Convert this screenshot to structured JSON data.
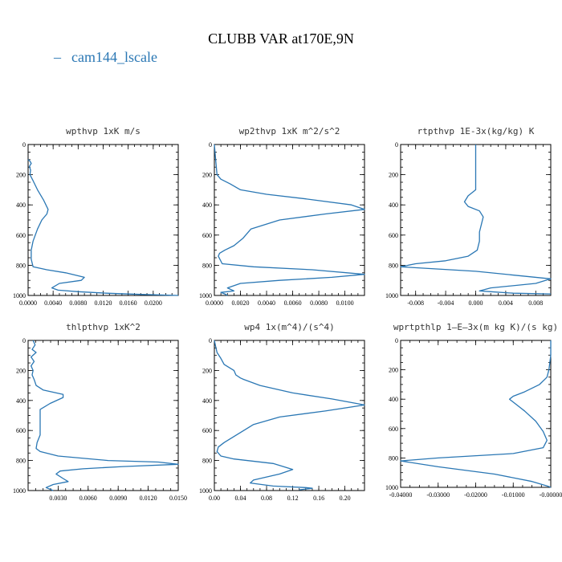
{
  "figure": {
    "title": "CLUBB VAR at170E,9N",
    "legend": [
      {
        "label": "cam144_lscale",
        "marker": "–",
        "color": "#2a77b4"
      }
    ]
  },
  "colors": {
    "series": "#2a77b4",
    "axis": "#000000",
    "panel_title": "#333333"
  },
  "chart_data": [
    {
      "type": "line",
      "title": "wpthvp  1xK m/s",
      "xlabel": "",
      "ylabel": "",
      "xlim": [
        0,
        0.024
      ],
      "xticks": [
        "0.0000",
        "0.0040",
        "0.0080",
        "0.0120",
        "0.0160",
        "0.0200"
      ],
      "xtick_values": [
        0,
        0.004,
        0.008,
        0.012,
        0.016,
        0.02
      ],
      "ylim": [
        1000,
        0
      ],
      "yticks": [
        "0",
        "200",
        "400",
        "600",
        "800",
        "1000"
      ],
      "ytick_values": [
        0,
        200,
        400,
        600,
        800,
        1000
      ],
      "series": [
        {
          "name": "cam144_lscale",
          "x": [
            0,
            0.0003,
            0.0005,
            0.0002,
            0.0004,
            0.0003,
            0.0008,
            0.0015,
            0.0025,
            0.0032,
            0.003,
            0.0022,
            0.0015,
            0.0008,
            0.0005,
            0.0005,
            0.0008,
            0.003,
            0.006,
            0.009,
            0.0085,
            0.005,
            0.0038,
            0.0048,
            0.008,
            0.0125,
            0.018,
            0.024
          ],
          "y": [
            100,
            110,
            125,
            145,
            170,
            200,
            240,
            300,
            370,
            430,
            460,
            500,
            560,
            640,
            700,
            760,
            810,
            830,
            850,
            880,
            900,
            920,
            950,
            965,
            975,
            985,
            993,
            1000
          ]
        }
      ]
    },
    {
      "type": "line",
      "title": "wp2thvp  1xK m^2/s^2",
      "xlabel": "",
      "ylabel": "",
      "xlim": [
        0,
        0.0115
      ],
      "xticks": [
        "0.0000",
        "0.0020",
        "0.0040",
        "0.0060",
        "0.0080",
        "0.0100"
      ],
      "xtick_values": [
        0,
        0.002,
        0.004,
        0.006,
        0.008,
        0.01
      ],
      "ylim": [
        1000,
        0
      ],
      "yticks": [
        "0",
        "200",
        "400",
        "600",
        "800",
        "1000"
      ],
      "ytick_values": [
        0,
        200,
        400,
        600,
        800,
        1000
      ],
      "series": [
        {
          "name": "cam144_lscale",
          "x": [
            0,
            0.0001,
            0.0002,
            0.0005,
            0.0012,
            0.002,
            0.004,
            0.007,
            0.0105,
            0.0115,
            0.0085,
            0.005,
            0.0028,
            0.0022,
            0.0015,
            0.0008,
            0.0004,
            0.0003,
            0.0006,
            0.003,
            0.0075,
            0.0115,
            0.009,
            0.005,
            0.002,
            0.001,
            0.0015,
            0.0005,
            0.0008,
            0.001
          ],
          "y": [
            0,
            100,
            200,
            230,
            260,
            300,
            330,
            360,
            400,
            430,
            460,
            500,
            560,
            620,
            670,
            700,
            720,
            740,
            790,
            810,
            830,
            860,
            880,
            900,
            920,
            950,
            970,
            980,
            990,
            1000
          ]
        }
      ]
    },
    {
      "type": "line",
      "title": "rtpthvp  1E-3x(kg/kg) K",
      "xlabel": "",
      "ylabel": "",
      "xlim": [
        -0.01,
        0.01
      ],
      "xticks": [
        "-0.008",
        "-0.004",
        "0.000",
        "0.004",
        "0.008"
      ],
      "xtick_values": [
        -0.008,
        -0.004,
        0,
        0.004,
        0.008
      ],
      "ylim": [
        1000,
        0
      ],
      "yticks": [
        "0",
        "200",
        "400",
        "600",
        "800",
        "1000"
      ],
      "ytick_values": [
        0,
        200,
        400,
        600,
        800,
        1000
      ],
      "series": [
        {
          "name": "cam144_lscale",
          "x": [
            0,
            0,
            0,
            0,
            -0.001,
            -0.0015,
            -0.001,
            0.0005,
            0.001,
            0.0008,
            0.0005,
            0.0005,
            0.0002,
            -0.001,
            -0.004,
            -0.008,
            -0.01,
            0.0,
            0.01,
            0.008,
            0.002,
            0.0005,
            0.002,
            0.005,
            0.01
          ],
          "y": [
            0,
            100,
            200,
            300,
            340,
            380,
            410,
            440,
            480,
            520,
            580,
            640,
            700,
            740,
            770,
            790,
            810,
            840,
            890,
            920,
            950,
            970,
            975,
            985,
            990
          ]
        }
      ]
    },
    {
      "type": "line",
      "title": "thlpthvp  1xK^2",
      "xlabel": "",
      "ylabel": "",
      "xlim": [
        0,
        0.015
      ],
      "xticks": [
        "0.0030",
        "0.0060",
        "0.0090",
        "0.0120",
        "0.0150"
      ],
      "xtick_values": [
        0.003,
        0.006,
        0.009,
        0.012,
        0.015
      ],
      "ylim": [
        1000,
        0
      ],
      "yticks": [
        "0",
        "200",
        "400",
        "600",
        "800",
        "1000"
      ],
      "ytick_values": [
        0,
        200,
        400,
        600,
        800,
        1000
      ],
      "series": [
        {
          "name": "cam144_lscale",
          "x": [
            0.0005,
            0.0007,
            0.0004,
            0.0008,
            0.0003,
            0.0006,
            0.0003,
            0.0005,
            0.0004,
            0.0006,
            0.0008,
            0.0015,
            0.0035,
            0.0035,
            0.0022,
            0.0012,
            0.0012,
            0.0012,
            0.0012,
            0.0009,
            0.0008,
            0.0012,
            0.003,
            0.008,
            0.013,
            0.015,
            0.0095,
            0.0055,
            0.0032,
            0.0028,
            0.0035,
            0.004,
            0.0025,
            0.0018,
            0.0025
          ],
          "y": [
            0,
            30,
            60,
            80,
            110,
            140,
            170,
            200,
            230,
            260,
            300,
            330,
            360,
            380,
            420,
            460,
            520,
            580,
            630,
            680,
            720,
            740,
            770,
            800,
            810,
            825,
            840,
            855,
            870,
            890,
            920,
            940,
            960,
            980,
            1000
          ]
        }
      ]
    },
    {
      "type": "line",
      "title": "wp4  1x(m^4)/(s^4)",
      "xlabel": "",
      "ylabel": "",
      "xlim": [
        0,
        0.23
      ],
      "xticks": [
        "0.00",
        "0.04",
        "0.08",
        "0.12",
        "0.16",
        "0.20"
      ],
      "xtick_values": [
        0,
        0.04,
        0.08,
        0.12,
        0.16,
        0.2
      ],
      "ylim": [
        1000,
        0
      ],
      "yticks": [
        "0",
        "200",
        "400",
        "600",
        "800",
        "1000"
      ],
      "ytick_values": [
        0,
        200,
        400,
        600,
        800,
        1000
      ],
      "series": [
        {
          "name": "cam144_lscale",
          "x": [
            0,
            0.002,
            0.004,
            0.01,
            0.015,
            0.03,
            0.033,
            0.04,
            0.045,
            0.07,
            0.12,
            0.18,
            0.23,
            0.17,
            0.1,
            0.06,
            0.045,
            0.03,
            0.015,
            0.006,
            0.004,
            0.01,
            0.03,
            0.09,
            0.12,
            0.1,
            0.06,
            0.055,
            0.09,
            0.14,
            0.15,
            0.13
          ],
          "y": [
            0,
            40,
            80,
            120,
            160,
            200,
            230,
            250,
            260,
            300,
            350,
            390,
            430,
            470,
            510,
            560,
            600,
            640,
            680,
            710,
            740,
            770,
            790,
            820,
            860,
            890,
            930,
            950,
            970,
            980,
            985,
            995
          ]
        }
      ]
    },
    {
      "type": "line",
      "title": "wprtpthlp  1–E–3x(m kg K)/(s kg)",
      "xlabel": "",
      "ylabel": "",
      "xlim": [
        -0.04,
        0
      ],
      "xticks": [
        "-0.04000",
        "-0.03000",
        "-0.02000",
        "-0.01000",
        "-0.00000"
      ],
      "xtick_values": [
        -0.04,
        -0.03,
        -0.02,
        -0.01,
        0
      ],
      "ylim": [
        1000,
        0
      ],
      "yticks": [
        "0",
        "200",
        "400",
        "600",
        "800",
        "1000"
      ],
      "ytick_values": [
        0,
        200,
        400,
        600,
        800,
        1000
      ],
      "series": [
        {
          "name": "cam144_lscale",
          "x": [
            0,
            0,
            -0.0005,
            -0.001,
            -0.003,
            -0.007,
            -0.01,
            -0.011,
            -0.01,
            -0.007,
            -0.004,
            -0.002,
            -0.001,
            -0.002,
            -0.01,
            -0.03,
            -0.04,
            -0.03,
            -0.015,
            -0.005,
            -0.001,
            0
          ],
          "y": [
            0,
            100,
            200,
            250,
            300,
            350,
            380,
            400,
            420,
            480,
            550,
            620,
            680,
            730,
            770,
            800,
            820,
            860,
            910,
            960,
            990,
            1000
          ]
        }
      ]
    }
  ]
}
